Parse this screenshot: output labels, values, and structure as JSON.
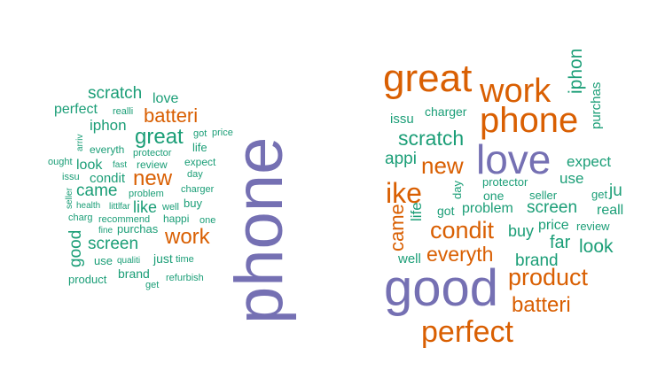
{
  "colors": {
    "green": "#1b9e77",
    "orange": "#d95f02",
    "purple": "#7570b3"
  },
  "left_cloud": {
    "words": [
      {
        "text": "phone",
        "color": "purple"
      },
      {
        "text": "great",
        "color": "green"
      },
      {
        "text": "batteri",
        "color": "orange"
      },
      {
        "text": "work",
        "color": "orange"
      },
      {
        "text": "new",
        "color": "orange"
      },
      {
        "text": "scratch",
        "color": "green"
      },
      {
        "text": "screen",
        "color": "green"
      },
      {
        "text": "came",
        "color": "green"
      },
      {
        "text": "perfect",
        "color": "green"
      },
      {
        "text": "iphon",
        "color": "green"
      },
      {
        "text": "love",
        "color": "green"
      },
      {
        "text": "like",
        "color": "green"
      },
      {
        "text": "good",
        "color": "green"
      },
      {
        "text": "condit",
        "color": "green"
      },
      {
        "text": "look",
        "color": "green"
      },
      {
        "text": "brand",
        "color": "green"
      },
      {
        "text": "just",
        "color": "green"
      },
      {
        "text": "use",
        "color": "green"
      },
      {
        "text": "life",
        "color": "green"
      },
      {
        "text": "buy",
        "color": "green"
      },
      {
        "text": "everyth",
        "color": "green"
      },
      {
        "text": "review",
        "color": "green"
      },
      {
        "text": "purchas",
        "color": "green"
      },
      {
        "text": "product",
        "color": "green"
      },
      {
        "text": "realli",
        "color": "green"
      },
      {
        "text": "got",
        "color": "green"
      },
      {
        "text": "price",
        "color": "green"
      },
      {
        "text": "arriv",
        "color": "green"
      },
      {
        "text": "protector",
        "color": "green"
      },
      {
        "text": "expect",
        "color": "green"
      },
      {
        "text": "ought",
        "color": "green"
      },
      {
        "text": "fast",
        "color": "green"
      },
      {
        "text": "day",
        "color": "green"
      },
      {
        "text": "issu",
        "color": "green"
      },
      {
        "text": "charger",
        "color": "green"
      },
      {
        "text": "seller",
        "color": "green"
      },
      {
        "text": "problem",
        "color": "green"
      },
      {
        "text": "health",
        "color": "green"
      },
      {
        "text": "littl",
        "color": "green"
      },
      {
        "text": "far",
        "color": "green"
      },
      {
        "text": "well",
        "color": "green"
      },
      {
        "text": "charg",
        "color": "green"
      },
      {
        "text": "recommend",
        "color": "green"
      },
      {
        "text": "happi",
        "color": "green"
      },
      {
        "text": "one",
        "color": "green"
      },
      {
        "text": "fine",
        "color": "green"
      },
      {
        "text": "qualiti",
        "color": "green"
      },
      {
        "text": "time",
        "color": "green"
      },
      {
        "text": "get",
        "color": "green"
      },
      {
        "text": "refurbish",
        "color": "green"
      }
    ]
  },
  "right_cloud": {
    "words": [
      {
        "text": "great",
        "color": "orange"
      },
      {
        "text": "work",
        "color": "orange"
      },
      {
        "text": "iphon",
        "color": "green"
      },
      {
        "text": "phone",
        "color": "orange"
      },
      {
        "text": "purchas",
        "color": "green"
      },
      {
        "text": "issu",
        "color": "green"
      },
      {
        "text": "charger",
        "color": "green"
      },
      {
        "text": "scratch",
        "color": "green"
      },
      {
        "text": "love",
        "color": "purple"
      },
      {
        "text": "appi",
        "color": "green"
      },
      {
        "text": "new",
        "color": "orange"
      },
      {
        "text": "expect",
        "color": "green"
      },
      {
        "text": "use",
        "color": "green"
      },
      {
        "text": "ike",
        "color": "orange"
      },
      {
        "text": "day",
        "color": "green"
      },
      {
        "text": "protector",
        "color": "green"
      },
      {
        "text": "one",
        "color": "green"
      },
      {
        "text": "seller",
        "color": "green"
      },
      {
        "text": "get",
        "color": "green"
      },
      {
        "text": "ju",
        "color": "green"
      },
      {
        "text": "screen",
        "color": "green"
      },
      {
        "text": "reall",
        "color": "green"
      },
      {
        "text": "got",
        "color": "green"
      },
      {
        "text": "problem",
        "color": "green"
      },
      {
        "text": "life",
        "color": "green"
      },
      {
        "text": "condit",
        "color": "orange"
      },
      {
        "text": "buy",
        "color": "green"
      },
      {
        "text": "price",
        "color": "green"
      },
      {
        "text": "review",
        "color": "green"
      },
      {
        "text": "far",
        "color": "green"
      },
      {
        "text": "look",
        "color": "green"
      },
      {
        "text": "well",
        "color": "green"
      },
      {
        "text": "everyth",
        "color": "orange"
      },
      {
        "text": "brand",
        "color": "green"
      },
      {
        "text": "good",
        "color": "purple"
      },
      {
        "text": "product",
        "color": "orange"
      },
      {
        "text": "batteri",
        "color": "orange"
      },
      {
        "text": "perfect",
        "color": "orange"
      },
      {
        "text": "came",
        "color": "orange"
      }
    ]
  }
}
